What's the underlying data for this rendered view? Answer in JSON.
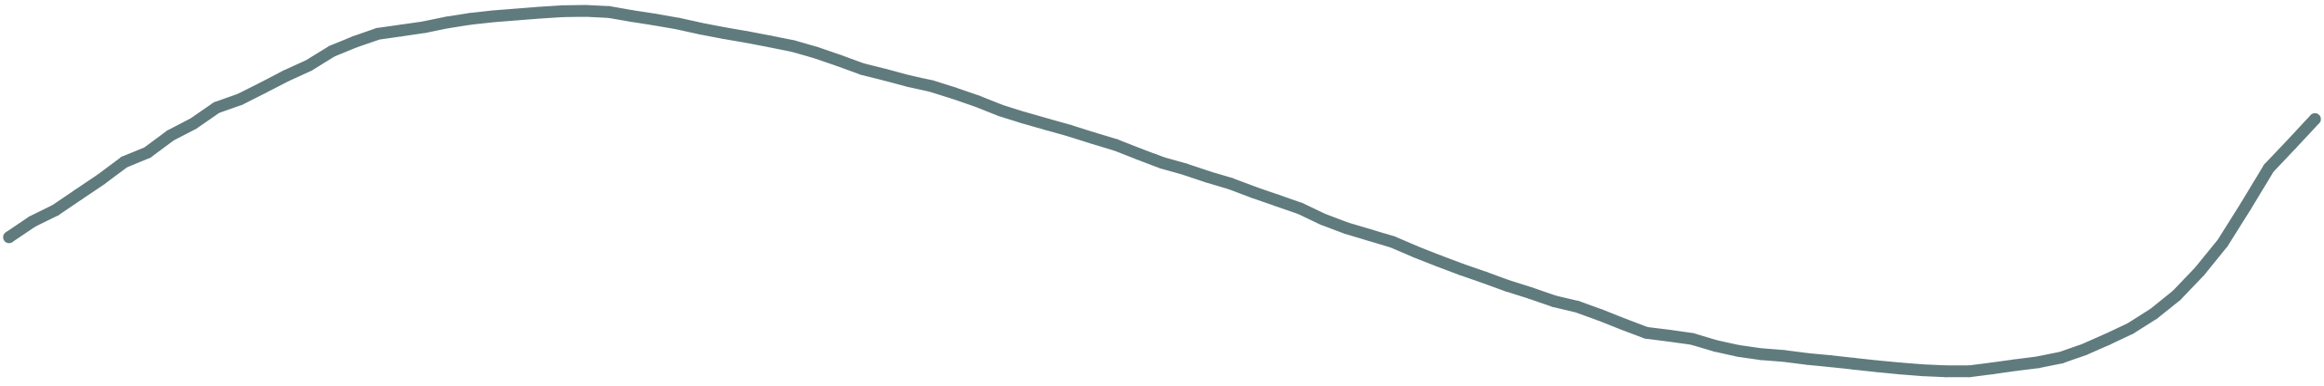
{
  "chart_data": {
    "type": "line",
    "title": "",
    "xlabel": "",
    "ylabel": "",
    "grid": false,
    "legend": "none",
    "xlim": [
      0,
      100
    ],
    "ylim": [
      0,
      100
    ],
    "series": [
      {
        "color": "#607b7d",
        "x": [
          0,
          1,
          2,
          3,
          4,
          5,
          6,
          7,
          8,
          9,
          10,
          11,
          12,
          13,
          14,
          15,
          16,
          17,
          18,
          19,
          20,
          21,
          22,
          23,
          24,
          25,
          26,
          27,
          28,
          29,
          30,
          31,
          32,
          33,
          34,
          35,
          36,
          37,
          38,
          39,
          40,
          41,
          42,
          43,
          44,
          45,
          46,
          47,
          48,
          49,
          50,
          51,
          52,
          53,
          54,
          55,
          56,
          57,
          58,
          59,
          60,
          61,
          62,
          63,
          64,
          65,
          66,
          67,
          68,
          69,
          70,
          71,
          72,
          73,
          74,
          75,
          76,
          77,
          78,
          79,
          80,
          81,
          82,
          83,
          84,
          85,
          86,
          87,
          88,
          89,
          90,
          91,
          92,
          93,
          94,
          95,
          96,
          97,
          98,
          99,
          100
        ],
        "y": [
          37.7,
          42.0,
          45.1,
          49.4,
          53.7,
          58.4,
          61.0,
          65.7,
          69.0,
          73.4,
          75.6,
          78.8,
          82.1,
          85.0,
          88.9,
          91.5,
          93.7,
          94.6,
          95.5,
          96.8,
          97.8,
          98.5,
          99.0,
          99.5,
          99.9,
          100.0,
          99.7,
          98.6,
          97.6,
          96.5,
          95.1,
          93.9,
          92.8,
          91.6,
          90.3,
          88.5,
          86.3,
          84.0,
          82.4,
          80.7,
          79.3,
          77.3,
          75.1,
          72.6,
          70.6,
          68.8,
          67.0,
          65.0,
          63.1,
          60.6,
          58.2,
          56.4,
          54.3,
          52.4,
          50.0,
          47.8,
          45.6,
          42.6,
          40.2,
          38.3,
          36.4,
          33.7,
          31.2,
          28.8,
          26.6,
          24.3,
          22.3,
          20.1,
          18.6,
          16.3,
          13.8,
          11.4,
          10.6,
          9.7,
          7.8,
          6.4,
          5.5,
          5.0,
          4.2,
          3.6,
          2.9,
          2.2,
          1.6,
          1.1,
          0.8,
          0.8,
          1.6,
          2.5,
          3.3,
          4.6,
          6.8,
          9.6,
          12.6,
          16.6,
          21.7,
          28.3,
          36.1,
          46.2,
          56.7,
          63.4,
          70.2
        ]
      }
    ]
  }
}
